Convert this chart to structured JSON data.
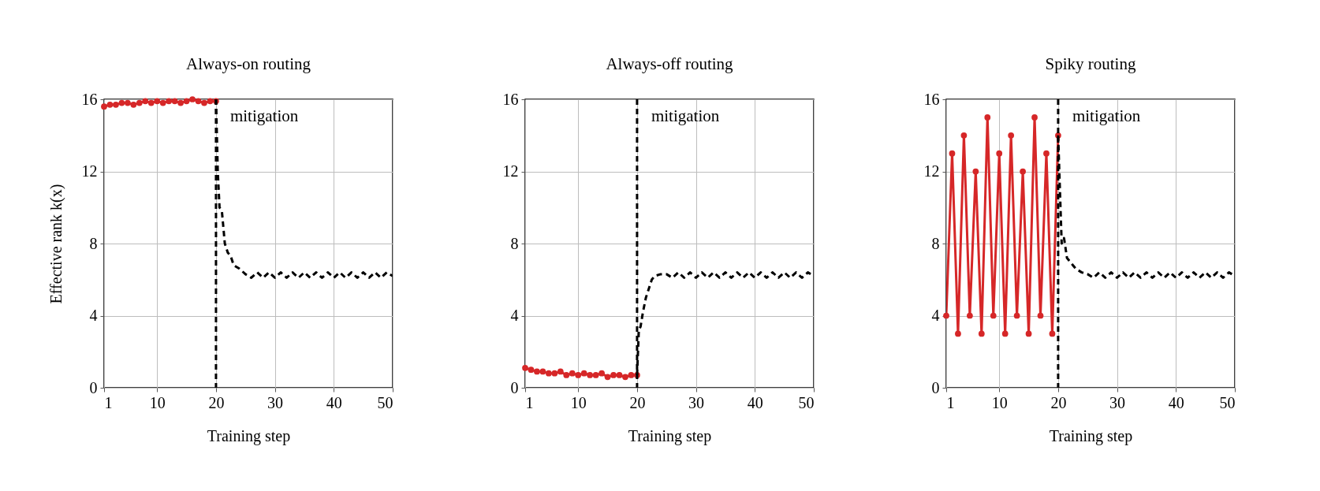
{
  "chart_data": [
    {
      "type": "line",
      "title": "Always-on routing",
      "xlabel": "Training step",
      "ylabel": "Effective rank k(x)",
      "xlim": [
        1,
        50
      ],
      "xticks": [
        1,
        10,
        20,
        30,
        40,
        50
      ],
      "ylim": [
        0,
        16
      ],
      "yticks": [
        0,
        4,
        8,
        12,
        16
      ],
      "grid": true,
      "series": [
        {
          "color": "#d62728",
          "marker": "circle",
          "line_style": "solid",
          "x": [
            1,
            2,
            3,
            4,
            5,
            6,
            7,
            8,
            9,
            10,
            11,
            12,
            13,
            14,
            15,
            16,
            17,
            18,
            19,
            20
          ],
          "values": [
            15.6,
            15.7,
            15.7,
            15.8,
            15.8,
            15.7,
            15.8,
            15.9,
            15.8,
            15.9,
            15.8,
            15.9,
            15.9,
            15.8,
            15.9,
            16,
            15.9,
            15.8,
            15.9,
            15.9
          ]
        },
        {
          "color": "#000000",
          "marker": "none",
          "line_style": "dashed",
          "x": [
            20,
            20.3,
            20.6,
            21,
            21.5,
            22,
            22.5,
            23,
            24,
            25,
            26,
            27,
            28,
            29,
            30,
            31,
            32,
            33,
            34,
            35,
            36,
            37,
            38,
            39,
            40,
            41,
            42,
            43,
            44,
            45,
            46,
            47,
            48,
            49,
            50
          ],
          "values": [
            16,
            12,
            10,
            9.8,
            8,
            7.5,
            7.3,
            6.8,
            6.6,
            6.3,
            6.1,
            6.4,
            6.1,
            6.4,
            6.1,
            6.4,
            6.1,
            6.4,
            6.1,
            6.4,
            6.1,
            6.4,
            6.1,
            6.4,
            6.1,
            6.4,
            6.1,
            6.4,
            6.1,
            6.4,
            6.1,
            6.4,
            6.1,
            6.4,
            6.2
          ]
        }
      ],
      "ref_lines": [
        {
          "axis": "x",
          "value": 20,
          "label": "mitigation",
          "color": "#000000",
          "line_style": "dashed"
        }
      ]
    },
    {
      "type": "line",
      "title": "Always-off routing",
      "xlabel": "Training step",
      "xlim": [
        1,
        50
      ],
      "xticks": [
        1,
        10,
        20,
        30,
        40,
        50
      ],
      "ylim": [
        0,
        16
      ],
      "yticks": [
        0,
        4,
        8,
        12,
        16
      ],
      "grid": true,
      "series": [
        {
          "color": "#d62728",
          "marker": "circle",
          "line_style": "solid",
          "x": [
            1,
            2,
            3,
            4,
            5,
            6,
            7,
            8,
            9,
            10,
            11,
            12,
            13,
            14,
            15,
            16,
            17,
            18,
            19,
            20
          ],
          "values": [
            1.1,
            1,
            0.9,
            0.9,
            0.8,
            0.8,
            0.9,
            0.7,
            0.8,
            0.7,
            0.8,
            0.7,
            0.7,
            0.8,
            0.6,
            0.7,
            0.7,
            0.6,
            0.7,
            0.7
          ]
        },
        {
          "color": "#000000",
          "marker": "none",
          "line_style": "dashed",
          "x": [
            20,
            20.3,
            20.6,
            21,
            21.5,
            22,
            22.5,
            23,
            24,
            25,
            26,
            27,
            28,
            29,
            30,
            31,
            32,
            33,
            34,
            35,
            36,
            37,
            38,
            39,
            40,
            41,
            42,
            43,
            44,
            45,
            46,
            47,
            48,
            49,
            50
          ],
          "values": [
            0.7,
            3.2,
            3.4,
            4.2,
            5,
            5.5,
            6,
            6.2,
            6.3,
            6.3,
            6.1,
            6.4,
            6.1,
            6.4,
            6.1,
            6.4,
            6.1,
            6.4,
            6.1,
            6.4,
            6.1,
            6.4,
            6.1,
            6.4,
            6.1,
            6.4,
            6.1,
            6.4,
            6.1,
            6.4,
            6.1,
            6.4,
            6.1,
            6.4,
            6.2
          ]
        }
      ],
      "ref_lines": [
        {
          "axis": "x",
          "value": 20,
          "label": "mitigation",
          "color": "#000000",
          "line_style": "dashed"
        }
      ]
    },
    {
      "type": "line",
      "title": "Spiky routing",
      "xlabel": "Training step",
      "xlim": [
        1,
        50
      ],
      "xticks": [
        1,
        10,
        20,
        30,
        40,
        50
      ],
      "ylim": [
        0,
        16
      ],
      "yticks": [
        0,
        4,
        8,
        12,
        16
      ],
      "grid": true,
      "series": [
        {
          "color": "#d62728",
          "marker": "circle",
          "line_style": "solid",
          "x": [
            1,
            2,
            3,
            4,
            5,
            6,
            7,
            8,
            9,
            10,
            11,
            12,
            13,
            14,
            15,
            16,
            17,
            18,
            19,
            20
          ],
          "values": [
            4,
            13,
            3,
            14,
            4,
            12,
            3,
            15,
            4,
            13,
            3,
            14,
            4,
            12,
            3,
            15,
            4,
            13,
            3,
            14
          ]
        },
        {
          "color": "#000000",
          "marker": "none",
          "line_style": "dashed",
          "x": [
            20,
            20.3,
            20.6,
            21,
            21.5,
            22,
            22.5,
            23,
            24,
            25,
            26,
            27,
            28,
            29,
            30,
            31,
            32,
            33,
            34,
            35,
            36,
            37,
            38,
            39,
            40,
            41,
            42,
            43,
            44,
            45,
            46,
            47,
            48,
            49,
            50
          ],
          "values": [
            14,
            11,
            8,
            8.3,
            7.2,
            7,
            6.8,
            6.6,
            6.4,
            6.3,
            6.1,
            6.4,
            6.1,
            6.4,
            6.1,
            6.4,
            6.1,
            6.4,
            6.1,
            6.4,
            6.1,
            6.4,
            6.1,
            6.4,
            6.1,
            6.4,
            6.1,
            6.4,
            6.1,
            6.4,
            6.1,
            6.4,
            6.1,
            6.4,
            6.2
          ]
        }
      ],
      "ref_lines": [
        {
          "axis": "x",
          "value": 20,
          "label": "mitigation",
          "color": "#000000",
          "line_style": "dashed"
        }
      ]
    }
  ]
}
